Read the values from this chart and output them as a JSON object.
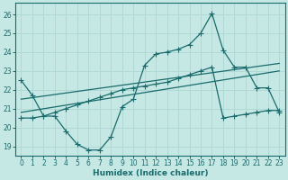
{
  "xlabel": "Humidex (Indice chaleur)",
  "x_ticks": [
    0,
    1,
    2,
    3,
    4,
    5,
    6,
    7,
    8,
    9,
    10,
    11,
    12,
    13,
    14,
    15,
    16,
    17,
    18,
    19,
    20,
    21,
    22,
    23
  ],
  "y_ticks": [
    19,
    20,
    21,
    22,
    23,
    24,
    25,
    26
  ],
  "ylim": [
    18.5,
    26.6
  ],
  "xlim": [
    -0.5,
    23.5
  ],
  "bg_color": "#c5e8e5",
  "line_color": "#1a6b6b",
  "grid_color": "#b0d8d5",
  "curve1_x": [
    0,
    1,
    2,
    3,
    4,
    5,
    6,
    7,
    8,
    9,
    10,
    11,
    12,
    13,
    14,
    15,
    16,
    17,
    18,
    19,
    20,
    21,
    22,
    23
  ],
  "curve1_y": [
    22.5,
    21.7,
    20.6,
    20.6,
    19.8,
    19.1,
    18.8,
    18.8,
    19.5,
    21.1,
    21.5,
    23.3,
    23.9,
    24.0,
    24.15,
    24.4,
    25.0,
    26.05,
    24.1,
    23.2,
    23.2,
    22.1,
    22.1,
    20.8
  ],
  "curve2_x": [
    0,
    1,
    2,
    3,
    4,
    5,
    6,
    7,
    8,
    9,
    10,
    11,
    12,
    13,
    14,
    15,
    16,
    17,
    18,
    19,
    20,
    21,
    22,
    23
  ],
  "curve2_y": [
    20.5,
    20.5,
    20.6,
    20.8,
    21.0,
    21.2,
    21.4,
    21.6,
    21.8,
    22.0,
    22.1,
    22.2,
    22.3,
    22.4,
    22.6,
    22.8,
    23.0,
    23.2,
    20.5,
    20.6,
    20.7,
    20.8,
    20.9,
    20.9
  ],
  "trend1_x": [
    0,
    23
  ],
  "trend1_y": [
    21.5,
    23.4
  ],
  "trend2_x": [
    0,
    23
  ],
  "trend2_y": [
    20.8,
    23.0
  ]
}
